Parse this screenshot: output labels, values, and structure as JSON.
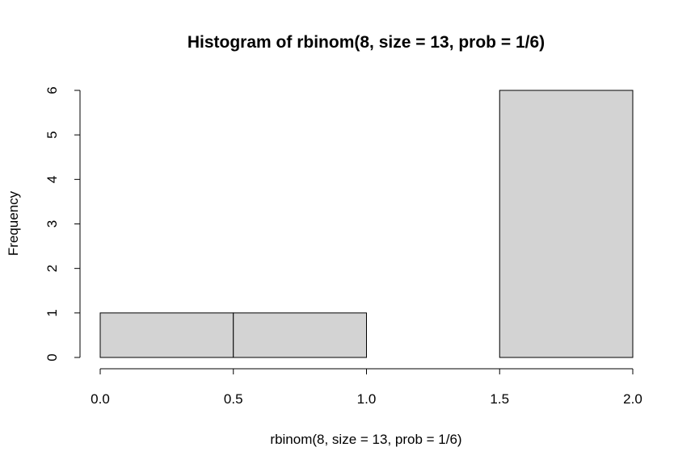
{
  "chart_data": {
    "type": "bar",
    "title": "Histogram of rbinom(8, size = 13, prob = 1/6)",
    "xlabel": "rbinom(8, size = 13, prob = 1/6)",
    "ylabel": "Frequency",
    "bins": [
      {
        "x0": 0.0,
        "x1": 0.5,
        "count": 1
      },
      {
        "x0": 0.5,
        "x1": 1.0,
        "count": 1
      },
      {
        "x0": 1.0,
        "x1": 1.5,
        "count": 0
      },
      {
        "x0": 1.5,
        "x1": 2.0,
        "count": 6
      }
    ],
    "xlim": [
      0.0,
      2.0
    ],
    "ylim": [
      0,
      6
    ],
    "xticks": [
      "0.0",
      "0.5",
      "1.0",
      "1.5",
      "2.0"
    ],
    "yticks": [
      "0",
      "1",
      "2",
      "3",
      "4",
      "5",
      "6"
    ],
    "grid": false,
    "bar_color": "#d3d3d3",
    "edge_color": "#000000"
  }
}
